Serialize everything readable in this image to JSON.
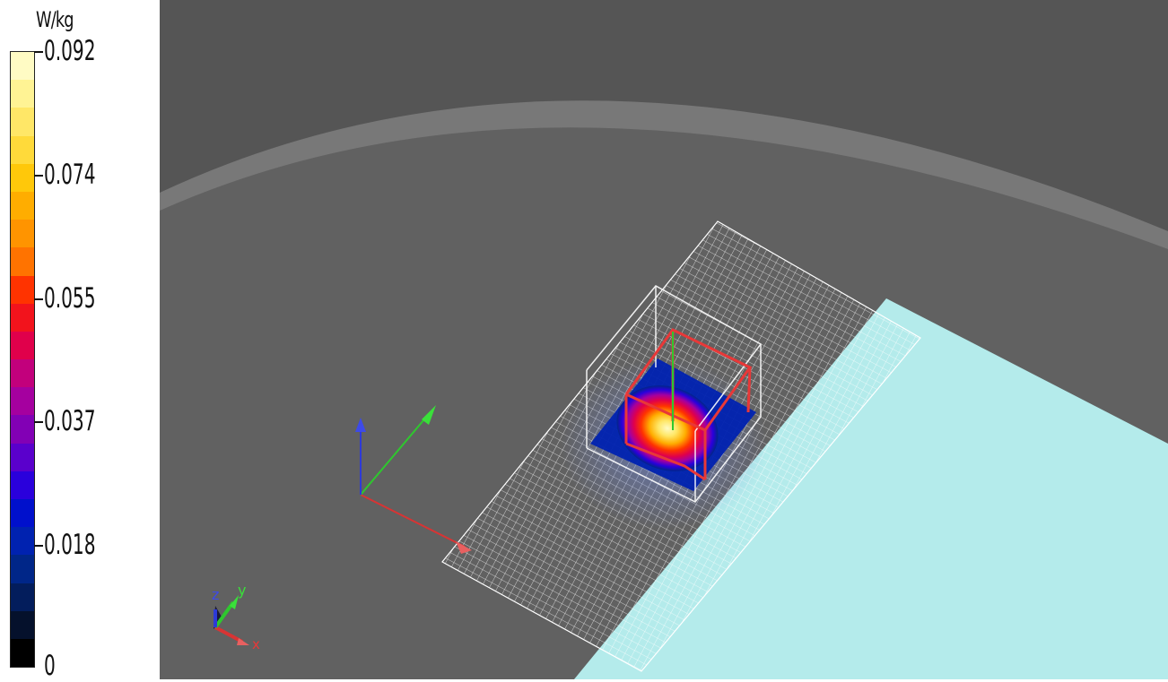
{
  "legend": {
    "unit": "W/kg",
    "ticks": [
      "0.092",
      "0.074",
      "0.055",
      "0.037",
      "0.018",
      "0"
    ],
    "colors": [
      "#fffbc4",
      "#fff394",
      "#ffe767",
      "#ffda3a",
      "#ffc80a",
      "#ffad00",
      "#ff9400",
      "#ff7300",
      "#ff3300",
      "#f2131c",
      "#e0004b",
      "#c2007c",
      "#a5009f",
      "#8200b5",
      "#5a00cc",
      "#2a00dc",
      "#0010cc",
      "#0022b0",
      "#002688",
      "#031d5c",
      "#05112c",
      "#000000"
    ]
  },
  "triad": {
    "z": "z",
    "y": "y",
    "x": "x"
  },
  "colors": {
    "background_dark": "#555555",
    "phantom_surface": "#777777",
    "phantom_floor": "#616161",
    "flat_plate": "#b4ebeb",
    "grid": "#ffffff",
    "axis_x": "#d83434",
    "axis_y": "#2ec82e",
    "axis_z": "#2d3ad8",
    "zoom_cube": "#e83838"
  }
}
